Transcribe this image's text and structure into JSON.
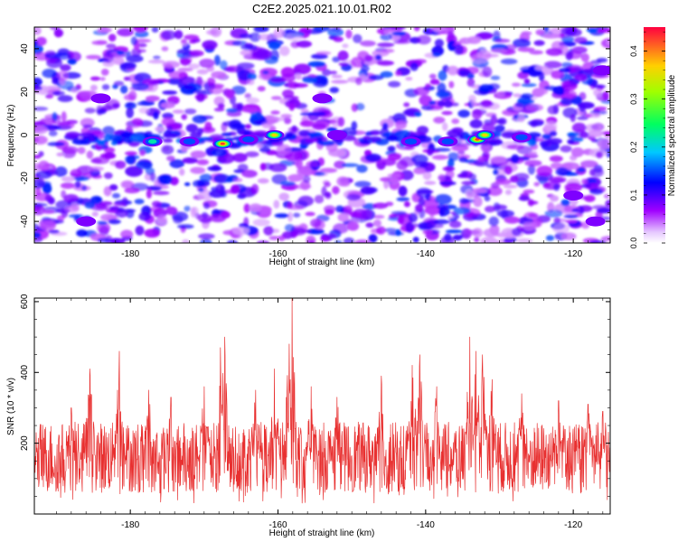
{
  "title": "C2E2.2025.021.10.01.R02",
  "chart_data": [
    {
      "type": "heatmap",
      "title": "C2E2.2025.021.10.01.R02",
      "xlabel": "Height of straight line (km)",
      "ylabel": "Frequency (Hz)",
      "xlim": [
        -193,
        -115
      ],
      "ylim": [
        -50,
        50
      ],
      "xticks": [
        -180,
        -160,
        -140,
        -120
      ],
      "yticks": [
        -40,
        -20,
        0,
        20,
        40
      ],
      "colorscale": [
        "#ffffff",
        "#a000ff",
        "#0000ff",
        "#00ffff",
        "#00ff00",
        "#ffff00",
        "#ff0000"
      ],
      "colorbar": {
        "label": "Normalized spectral amplitude",
        "range": [
          0.0,
          0.45
        ],
        "ticks": [
          0.0,
          0.1,
          0.2,
          0.3,
          0.4
        ]
      },
      "hotspots": [
        {
          "x": -167.5,
          "y": -4,
          "value": 0.45
        },
        {
          "x": -160.5,
          "y": 0,
          "value": 0.38
        },
        {
          "x": -133,
          "y": -2,
          "value": 0.44
        },
        {
          "x": -132,
          "y": 0,
          "value": 0.42
        },
        {
          "x": -177,
          "y": -3,
          "value": 0.22
        },
        {
          "x": -172,
          "y": -3,
          "value": 0.18
        },
        {
          "x": -142,
          "y": -3,
          "value": 0.2
        },
        {
          "x": -127,
          "y": -1,
          "value": 0.2
        },
        {
          "x": -137,
          "y": -3,
          "value": 0.17
        },
        {
          "x": -164,
          "y": -2,
          "value": 0.15
        },
        {
          "x": -152,
          "y": 0,
          "value": 0.12
        },
        {
          "x": -154,
          "y": 17,
          "value": 0.12
        },
        {
          "x": -186,
          "y": -40,
          "value": 0.1
        },
        {
          "x": -184,
          "y": 17,
          "value": 0.12
        },
        {
          "x": -120,
          "y": -28,
          "value": 0.12
        },
        {
          "x": -117,
          "y": -40,
          "value": 0.13
        },
        {
          "x": -116,
          "y": 30,
          "value": 0.12
        }
      ]
    },
    {
      "type": "line",
      "xlabel": "Height of straight line (km)",
      "ylabel": "SNR (10 * v/v)",
      "xlim": [
        -193,
        -115
      ],
      "ylim": [
        0,
        610
      ],
      "xticks": [
        -180,
        -160,
        -140,
        -120
      ],
      "yticks": [
        200,
        400,
        600
      ],
      "color": "#e83030",
      "baseline_range": [
        60,
        260
      ],
      "peaks": [
        {
          "x": -188,
          "y": 300
        },
        {
          "x": -185.5,
          "y": 410
        },
        {
          "x": -181.5,
          "y": 460
        },
        {
          "x": -177.5,
          "y": 350
        },
        {
          "x": -174.5,
          "y": 330
        },
        {
          "x": -170,
          "y": 360
        },
        {
          "x": -167.8,
          "y": 470
        },
        {
          "x": -167.2,
          "y": 500
        },
        {
          "x": -163,
          "y": 350
        },
        {
          "x": -160.5,
          "y": 410
        },
        {
          "x": -158.5,
          "y": 480
        },
        {
          "x": -158.1,
          "y": 610
        },
        {
          "x": -155.5,
          "y": 360
        },
        {
          "x": -152,
          "y": 330
        },
        {
          "x": -146,
          "y": 390
        },
        {
          "x": -141.8,
          "y": 420
        },
        {
          "x": -140.8,
          "y": 450
        },
        {
          "x": -138.5,
          "y": 360
        },
        {
          "x": -134,
          "y": 500
        },
        {
          "x": -133.2,
          "y": 460
        },
        {
          "x": -132.3,
          "y": 450
        },
        {
          "x": -131,
          "y": 380
        },
        {
          "x": -127,
          "y": 340
        },
        {
          "x": -122,
          "y": 320
        },
        {
          "x": -118,
          "y": 310
        },
        {
          "x": -116,
          "y": 290
        }
      ]
    }
  ]
}
